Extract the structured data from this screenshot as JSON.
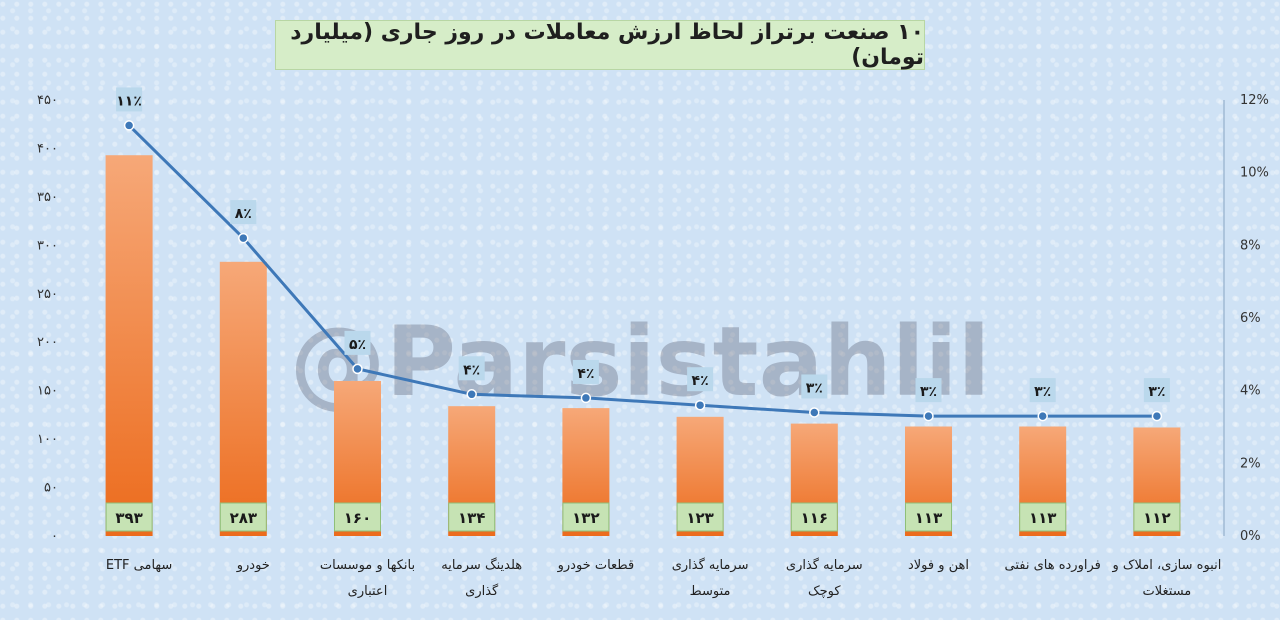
{
  "chart_data": {
    "type": "bar",
    "title": "۱۰ صنعت برتراز لحاظ ارزش معاملات در روز جاری (میلیارد تومان)",
    "categories": [
      [
        "سهامی ETF"
      ],
      [
        "خودرو"
      ],
      [
        "بانکها و موسسات",
        "اعتباری"
      ],
      [
        "هلدینگ سرمایه",
        "گذاری"
      ],
      [
        "قطعات خودرو"
      ],
      [
        "سرمایه گذاری",
        "متوسط"
      ],
      [
        "سرمایه گذاری",
        "کوچک"
      ],
      [
        "اهن و فولاد"
      ],
      [
        "فراورده های نفتی"
      ],
      [
        "انبوه سازی، املاک و",
        "مستغلات"
      ]
    ],
    "values": [
      393,
      283,
      160,
      134,
      132,
      123,
      116,
      113,
      113,
      112
    ],
    "value_labels": [
      "۳۹۳",
      "۲۸۳",
      "۱۶۰",
      "۱۳۴",
      "۱۳۲",
      "۱۲۳",
      "۱۱۶",
      "۱۱۳",
      "۱۱۳",
      "۱۱۲"
    ],
    "line_series": {
      "values": [
        11.3,
        8.2,
        4.6,
        3.9,
        3.8,
        3.6,
        3.4,
        3.3,
        3.3,
        3.3
      ],
      "labels": [
        "۱۱٪",
        "۸٪",
        "۵٪",
        "۴٪",
        "۴٪",
        "۴٪",
        "۳٪",
        "۳٪",
        "۳٪",
        "۳٪"
      ]
    },
    "ylim": [
      0,
      450
    ],
    "yticks": [
      0,
      50,
      100,
      150,
      200,
      250,
      300,
      350,
      400,
      450
    ],
    "ytick_labels": [
      "۰",
      "۵۰",
      "۱۰۰",
      "۱۵۰",
      "۲۰۰",
      "۲۵۰",
      "۳۰۰",
      "۳۵۰",
      "۴۰۰",
      "۴۵۰"
    ],
    "y2lim": [
      0,
      12
    ],
    "y2ticks": [
      0,
      2,
      4,
      6,
      8,
      10,
      12
    ],
    "y2tick_labels": [
      "0%",
      "2%",
      "4%",
      "6%",
      "8%",
      "10%",
      "12%"
    ],
    "grid": false,
    "legend": "none",
    "watermark": "@Parsistahlil",
    "colors": {
      "bar_top": "#f6a878",
      "bar_bottom": "#ec6b1c",
      "line": "#3e78b8",
      "label_box": "#bad8ec",
      "value_box": "#c6e3b4"
    }
  }
}
